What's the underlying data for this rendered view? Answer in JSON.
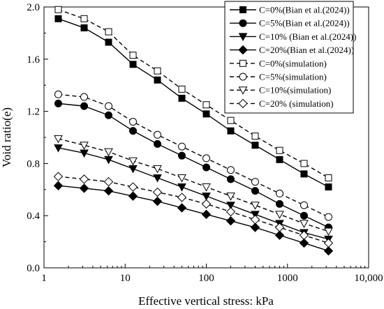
{
  "chart_data": {
    "type": "line",
    "title": "",
    "xlabel": "Effective vertical stress: kPa",
    "ylabel": "Void ratio(e)",
    "xscale": "log",
    "xlim": [
      1,
      10000
    ],
    "ylim": [
      0,
      2.0
    ],
    "xticks": [
      1,
      10,
      100,
      1000,
      10000
    ],
    "xtick_labels": [
      "1",
      "10",
      "100",
      "1000",
      "10,000"
    ],
    "yticks": [
      0,
      0.4,
      0.8,
      1.2,
      1.6,
      2.0
    ],
    "ytick_labels": [
      "0.0",
      "0.4",
      "0.8",
      "1.2",
      "1.6",
      "2.0"
    ],
    "grid": false,
    "legend_position": "top-right",
    "x": [
      1.5,
      3.125,
      6.25,
      12.5,
      25,
      50,
      100,
      200,
      400,
      800,
      1600,
      3200
    ],
    "series": [
      {
        "name": "C=0%(Bian et al.(2024))",
        "marker": "square",
        "filled": true,
        "dashed": false,
        "values": [
          1.91,
          1.84,
          1.73,
          1.56,
          1.44,
          1.3,
          1.18,
          1.05,
          0.94,
          0.83,
          0.72,
          0.62
        ]
      },
      {
        "name": "C=5%(Bian et al.(2024))",
        "marker": "circle",
        "filled": true,
        "dashed": false,
        "values": [
          1.26,
          1.24,
          1.17,
          1.05,
          0.95,
          0.86,
          0.77,
          0.68,
          0.59,
          0.49,
          0.4,
          0.31
        ]
      },
      {
        "name": "C=10% (Bian et al.(2024))",
        "marker": "triangle-down",
        "filled": true,
        "dashed": false,
        "values": [
          0.92,
          0.88,
          0.83,
          0.76,
          0.69,
          0.62,
          0.55,
          0.48,
          0.41,
          0.34,
          0.27,
          0.22
        ]
      },
      {
        "name": "C=20%(Bian et al.(2024))",
        "marker": "diamond",
        "filled": true,
        "dashed": false,
        "values": [
          0.63,
          0.61,
          0.59,
          0.55,
          0.51,
          0.46,
          0.41,
          0.36,
          0.31,
          0.25,
          0.19,
          0.13
        ]
      },
      {
        "name": "C=0%(simulation)",
        "marker": "square",
        "filled": false,
        "dashed": true,
        "values": [
          1.98,
          1.91,
          1.81,
          1.63,
          1.51,
          1.37,
          1.25,
          1.13,
          1.01,
          0.9,
          0.8,
          0.69
        ]
      },
      {
        "name": "C=5%(simulation)",
        "marker": "circle",
        "filled": false,
        "dashed": true,
        "values": [
          1.33,
          1.31,
          1.24,
          1.12,
          1.02,
          0.93,
          0.84,
          0.75,
          0.66,
          0.57,
          0.48,
          0.39
        ]
      },
      {
        "name": "C=10%(simulation)",
        "marker": "triangle-down",
        "filled": false,
        "dashed": true,
        "values": [
          0.99,
          0.94,
          0.89,
          0.82,
          0.76,
          0.69,
          0.62,
          0.55,
          0.48,
          0.41,
          0.34,
          0.28
        ]
      },
      {
        "name": "C=20% (simulation)",
        "marker": "diamond",
        "filled": false,
        "dashed": true,
        "values": [
          0.7,
          0.68,
          0.66,
          0.62,
          0.58,
          0.54,
          0.49,
          0.43,
          0.37,
          0.31,
          0.25,
          0.19
        ]
      }
    ]
  }
}
